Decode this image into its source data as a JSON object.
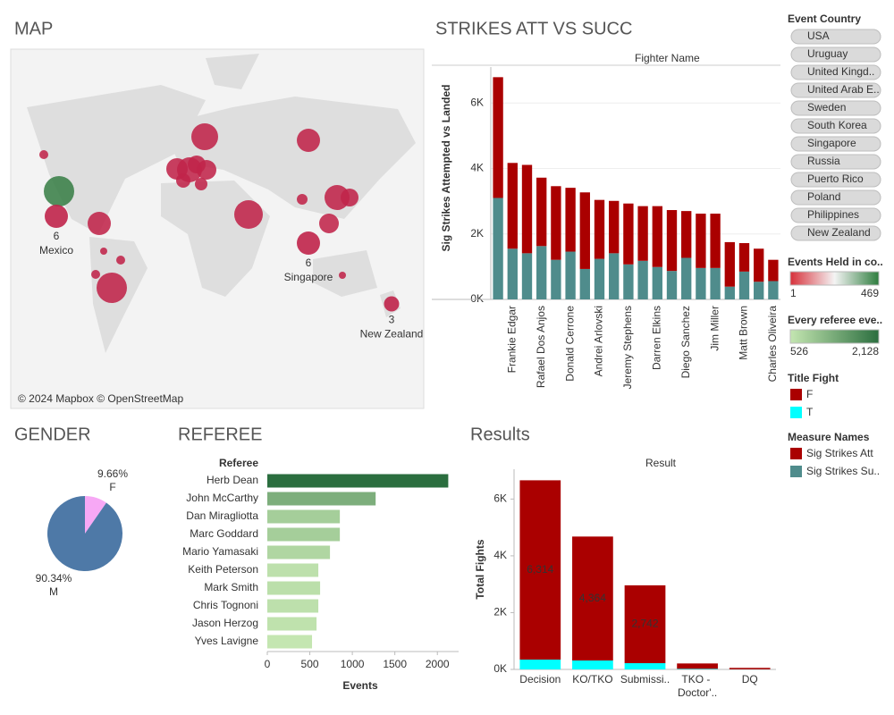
{
  "chart_data": [
    {
      "type": "map",
      "title": "MAP",
      "attribution": "© 2024 Mapbox © OpenStreetMap",
      "points": [
        {
          "name": "Mexico",
          "value": 6,
          "color": "#c0244a"
        },
        {
          "name": "Singapore",
          "value": 6,
          "color": "#c0244a"
        },
        {
          "name": "New Zealand",
          "value": 3,
          "color": "#c0244a"
        }
      ],
      "legend_title": "Events Held in co..",
      "legend_min": 1,
      "legend_max": 469,
      "legend_colors": [
        "#d7303a",
        "#f4f4f4",
        "#2e7d3e"
      ]
    },
    {
      "type": "bar",
      "title": "STRIKES ATT VS SUCC",
      "header": "Fighter Name",
      "y_label": "Sig Strikes Attempted vs Landed",
      "categories": [
        null,
        "Frankie Edgar",
        null,
        "Rafael Dos Anjos",
        null,
        "Donald Cerrone",
        null,
        "Andrei Arlovski",
        null,
        "Jeremy Stephens",
        null,
        "Darren Elkins",
        null,
        "Diego Sanchez",
        null,
        "Jim Miller",
        null,
        "Matt Brown",
        null,
        "Charles Oliveira"
      ],
      "series": [
        {
          "name": "Sig Strikes Att",
          "color": "#aa0000",
          "values": [
            3690,
            2620,
            2700,
            2090,
            2250,
            1950,
            2340,
            1800,
            1600,
            1860,
            1670,
            1860,
            1860,
            1430,
            1660,
            1660,
            1360,
            870,
            1010,
            650
          ]
        },
        {
          "name": "Sig Strikes Su..",
          "color": "#4f8c8c",
          "values": [
            3100,
            1550,
            1410,
            1630,
            1210,
            1460,
            930,
            1240,
            1410,
            1070,
            1180,
            990,
            870,
            1270,
            960,
            960,
            390,
            850,
            540,
            560
          ]
        }
      ],
      "ylim": [
        0,
        7100
      ],
      "yticks": [
        {
          "value": 0,
          "label": "0K"
        },
        {
          "value": 2000,
          "label": "2K"
        },
        {
          "value": 4000,
          "label": "4K"
        },
        {
          "value": 6000,
          "label": "6K"
        }
      ],
      "grid": true,
      "legend_title": "Measure Names"
    },
    {
      "type": "pie",
      "title": "GENDER",
      "categories": [
        "F",
        "M"
      ],
      "values": [
        9.66,
        90.34
      ],
      "value_labels": [
        "9.66%",
        "90.34%"
      ],
      "colors": [
        "#f7a8f5",
        "#4e79a7"
      ]
    },
    {
      "type": "hbar",
      "title": "REFEREE",
      "header": "Referee",
      "x_label": "Events",
      "categories": [
        "Herb Dean",
        "John McCarthy",
        "Dan Miragliotta",
        "Marc Goddard",
        "Mario Yamasaki",
        "Keith Peterson",
        "Mark Smith",
        "Chris Tognoni",
        "Jason Herzog",
        "Yves Lavigne"
      ],
      "values": [
        2128,
        1274,
        853,
        853,
        737,
        600,
        621,
        600,
        579,
        526
      ],
      "xlim": [
        0,
        2250
      ],
      "xticks": [
        0,
        500,
        1000,
        1500,
        2000
      ],
      "legend_title": "Every referee eve..",
      "legend_min": 526,
      "legend_max": {
        "value": 2128,
        "label": "2,128"
      },
      "legend_colors": [
        "#c4e6b1",
        "#2b6e3f"
      ]
    },
    {
      "type": "bar",
      "title": "Results",
      "header": "Result",
      "y_label": "Total Fights",
      "categories": [
        "Decision",
        "KO/TKO",
        "Submissi..",
        "TKO - Doctor'..",
        "DQ"
      ],
      "series": [
        {
          "name": "F",
          "color": "#aa0000",
          "values": [
            6314,
            4364,
            2742,
            190,
            50
          ],
          "value_labels": [
            "6,314",
            "4,364",
            "2,742",
            null,
            null
          ]
        },
        {
          "name": "T",
          "color": "#00ffff",
          "values": [
            346,
            315,
            220,
            20,
            5
          ]
        }
      ],
      "ylim": [
        0,
        7050
      ],
      "yticks": [
        {
          "value": 0,
          "label": "0K"
        },
        {
          "value": 2000,
          "label": "2K"
        },
        {
          "value": 4000,
          "label": "4K"
        },
        {
          "value": 6000,
          "label": "6K"
        }
      ],
      "grid": false,
      "legend_title": "Title Fight"
    }
  ],
  "filter": {
    "title": "Event Country",
    "items": [
      "USA",
      "Uruguay",
      "United Kingd..",
      "United Arab E..",
      "Sweden",
      "South Korea",
      "Singapore",
      "Russia",
      "Puerto Rico",
      "Poland",
      "Philippines",
      "New Zealand"
    ]
  }
}
